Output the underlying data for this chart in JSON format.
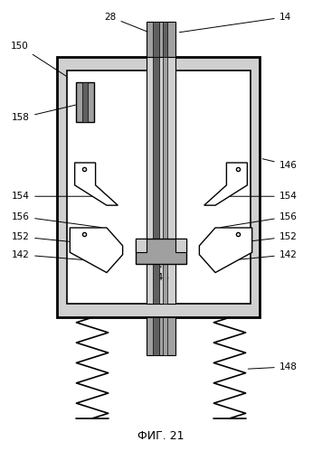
{
  "title": "ФИГ. 21",
  "bg_color": "#ffffff",
  "line_color": "#000000",
  "gray_light": "#d0d0d0",
  "gray_med": "#a0a0a0",
  "gray_dark": "#606060"
}
